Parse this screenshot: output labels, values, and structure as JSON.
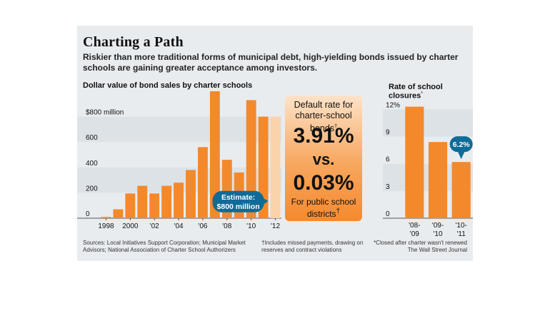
{
  "header": {
    "title": "Charting a Path",
    "subtitle": "Riskier than more traditional forms of municipal debt, high-yielding bonds issued by charter schools are gaining greater acceptance among investors."
  },
  "middle_panel": {
    "label": "Default rate for charter-school bonds",
    "label_mark": "†",
    "charter_rate": "3.91%",
    "vs": "vs.",
    "public_rate": "0.03%",
    "public_label": "For public school districts",
    "public_mark": "†"
  },
  "footer": {
    "sources": "Sources: Local Initiatives Support Corporation; Municipal Market Advisors; National Association of Charter School Authorizers",
    "dagger_note": "†Includes missed payments, drawing on reserves and contract violations",
    "closure_note": "*Closed after charter wasn't renewed",
    "credit": "The Wall Street Journal"
  },
  "colors": {
    "bar": "#f4892b",
    "estimate_bar": "#fbd3aa",
    "band": "#dde2e7",
    "callout": "#0f6b97",
    "panel": "#e9ecef"
  },
  "chart_data": [
    {
      "type": "bar",
      "title": "Dollar value of bond sales by charter schools",
      "ylim": [
        0,
        1000
      ],
      "y_ticks": [
        0,
        200,
        400,
        600,
        800
      ],
      "y_tick_labels": [
        "0",
        "200",
        "400",
        "600",
        "$800 million"
      ],
      "years": [
        1998,
        1999,
        2000,
        2001,
        2002,
        2003,
        2004,
        2005,
        2006,
        2007,
        2008,
        2009,
        2010,
        2011,
        2012
      ],
      "x_tick_labels": [
        "1998",
        "2000",
        "'02",
        "'04",
        "'06",
        "'08",
        "'10",
        "'12"
      ],
      "values": [
        10,
        70,
        195,
        255,
        195,
        255,
        280,
        380,
        560,
        1020,
        460,
        360,
        930,
        800,
        800
      ],
      "estimated": [
        false,
        false,
        false,
        false,
        false,
        false,
        false,
        false,
        false,
        false,
        false,
        false,
        false,
        false,
        true
      ],
      "callout": "Estimate: $800 million",
      "grid": false,
      "banded_background": true
    },
    {
      "type": "bar",
      "title": "Rate of school closures",
      "title_mark": "*",
      "ylim": [
        0,
        14
      ],
      "y_ticks": [
        0,
        3,
        6,
        9,
        12
      ],
      "y_tick_labels": [
        "0",
        "3",
        "6",
        "9",
        "12%"
      ],
      "categories": [
        [
          "'08-",
          "'09"
        ],
        [
          "'09-",
          "'10"
        ],
        [
          "'10-",
          "'11"
        ]
      ],
      "values": [
        12.3,
        8.4,
        6.2
      ],
      "callout": "6.2%",
      "grid": false,
      "banded_background": true
    }
  ]
}
